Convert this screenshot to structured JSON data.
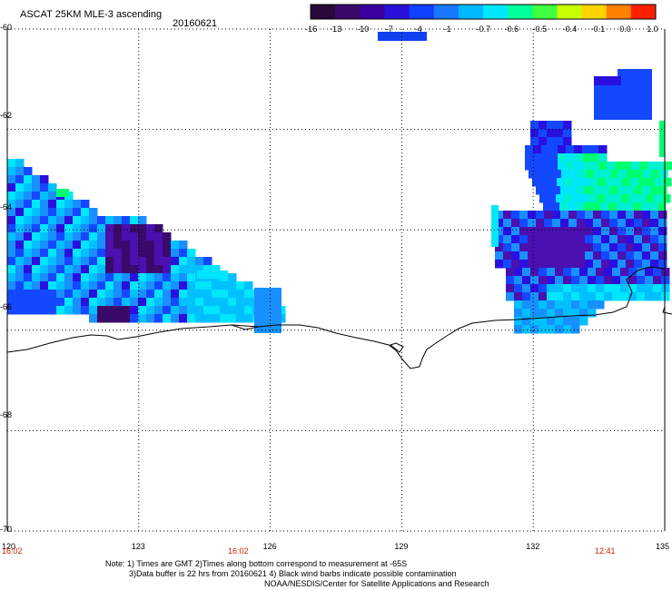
{
  "header": {
    "title": "ASCAT 25KM MLE-3 ascending",
    "date": "20160621"
  },
  "colorbar": {
    "ticks": [
      "-16",
      "-13",
      "-10",
      "-7",
      "-4",
      "-1",
      "-0.7",
      "-0.6",
      "-0.5",
      "-0.4",
      "-0.1",
      "0.0",
      "1.0"
    ],
    "colors": [
      "#2a0a3a",
      "#3a0a6a",
      "#3a00a0",
      "#2a10d8",
      "#1040ff",
      "#1878ff",
      "#00b8ff",
      "#00e8ff",
      "#00ff9a",
      "#40ff40",
      "#c8ff00",
      "#ffd400",
      "#ff8000",
      "#ff2000"
    ],
    "selected_color": "#1040f0"
  },
  "map": {
    "lat_labels": [
      "-60",
      "-62",
      "-64",
      "-66",
      "-68",
      "-70"
    ],
    "lon_labels": [
      "120",
      "123",
      "126",
      "129",
      "132",
      "135"
    ],
    "time_labels": [
      "16:02",
      "16:02",
      "12:41"
    ],
    "coastline_color": "#000000",
    "data_colors": {
      "deep_purple": "#3a0a6a",
      "purple": "#4a10b0",
      "dark_blue": "#2a10e0",
      "blue": "#1448ff",
      "light_blue": "#1890ff",
      "sky": "#00c0ff",
      "cyan": "#00e6ff",
      "aqua": "#00f0d0",
      "green": "#00ff70"
    }
  },
  "notes": {
    "line1": "Note: 1) Times are GMT 2)Times along bottom correspond to measurement at -65S",
    "line2": "3)Data buffer is 22 hrs from 20160621 4) Black wind barbs indicate possible contamination",
    "line3": "NOAA/NESDIS/Center for Satellite Applications and Research"
  }
}
